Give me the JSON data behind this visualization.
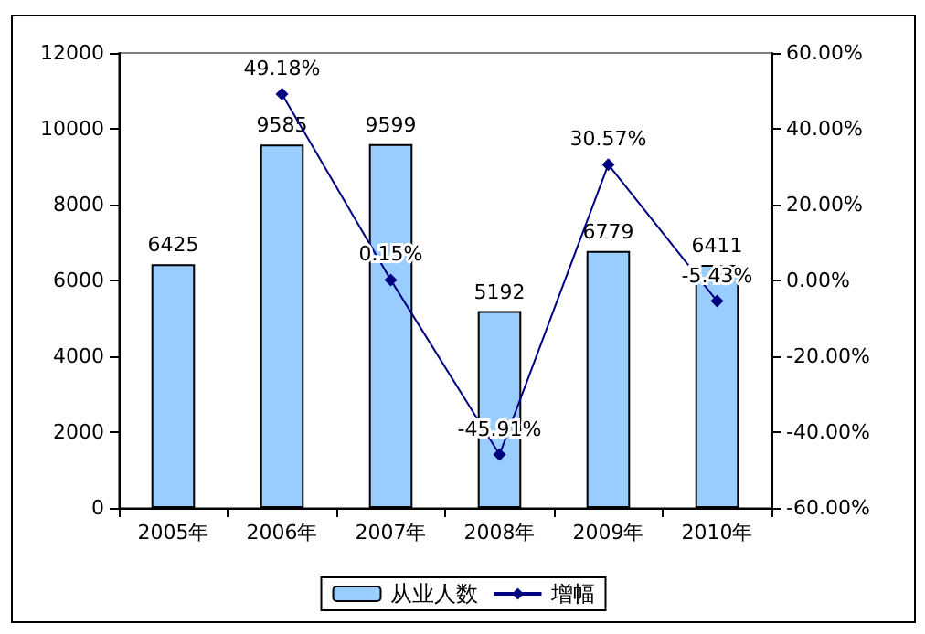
{
  "chart_data": {
    "type": "bar",
    "categories": [
      "2005年",
      "2006年",
      "2007年",
      "2008年",
      "2009年",
      "2010年"
    ],
    "series": [
      {
        "name": "从业人数",
        "color": "#99ccff",
        "values": [
          6425,
          9585,
          9599,
          5192,
          6779,
          6411
        ],
        "value_labels": [
          "6425",
          "9585",
          "9599",
          "5192",
          "6779",
          "6411"
        ]
      },
      {
        "name": "增幅",
        "type": "line",
        "axis": "y2",
        "color": "#000080",
        "marker": "diamond",
        "values": [
          null,
          49.18,
          0.15,
          -45.91,
          30.57,
          -5.43
        ],
        "value_labels": [
          null,
          "49.18%",
          "0.15%",
          "-45.91%",
          "30.57%",
          "-5.43%"
        ]
      }
    ],
    "ylim": [
      0,
      12000
    ],
    "yticks": [
      0,
      2000,
      4000,
      6000,
      8000,
      10000,
      12000
    ],
    "y2lim": [
      -60,
      60
    ],
    "y2ticks": [
      {
        "value": -60,
        "label": "-60.00%"
      },
      {
        "value": -40,
        "label": "-40.00%"
      },
      {
        "value": -20,
        "label": "-20.00%"
      },
      {
        "value": 0,
        "label": "0.00%"
      },
      {
        "value": 20,
        "label": "20.00%"
      },
      {
        "value": 40,
        "label": "40.00%"
      },
      {
        "value": 60,
        "label": "60.00%"
      }
    ],
    "grid": false,
    "legend": "bottom"
  }
}
